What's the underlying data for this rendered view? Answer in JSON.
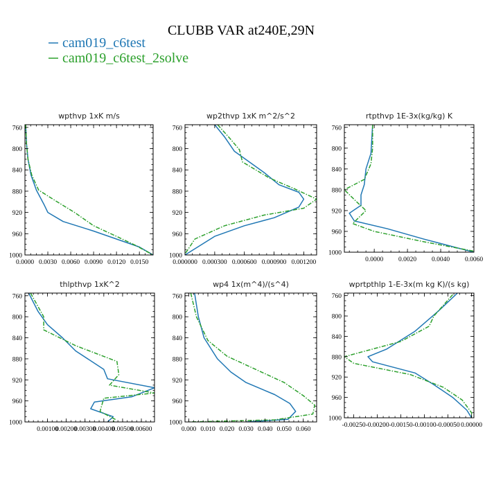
{
  "title": "CLUBB VAR at240E,29N",
  "legend": [
    {
      "label": "cam019_c6test",
      "color": "#1f77b4",
      "dash": "solid"
    },
    {
      "label": "cam019_c6test_2solve",
      "color": "#2ca02c",
      "dash": "dashdot"
    }
  ],
  "chart_data": [
    {
      "type": "line",
      "title": "wpthvp  1xK m/s",
      "xlim": [
        0,
        0.0168
      ],
      "ylim": [
        1000,
        755
      ],
      "xticks": [
        0.0,
        0.003,
        0.006,
        0.009,
        0.012,
        0.015
      ],
      "xtick_labels": [
        "0.0000",
        "0.0030",
        "0.0060",
        "0.0090",
        "0.0120",
        "0.0150"
      ],
      "yticks": [
        760,
        800,
        840,
        880,
        920,
        960,
        1000
      ],
      "ytick_labels": [
        "760",
        "800",
        "840",
        "880",
        "920",
        "960",
        "1000"
      ],
      "series": [
        {
          "name": "cam019_c6test",
          "points": [
            [
              0.0001,
              755
            ],
            [
              0.0002,
              790
            ],
            [
              0.0004,
              820
            ],
            [
              0.0008,
              850
            ],
            [
              0.0015,
              878
            ],
            [
              0.0025,
              905
            ],
            [
              0.003,
              920
            ],
            [
              0.005,
              937
            ],
            [
              0.009,
              955
            ],
            [
              0.012,
              970
            ],
            [
              0.015,
              985
            ],
            [
              0.0168,
              1000
            ]
          ]
        },
        {
          "name": "cam019_c6test_2solve",
          "points": [
            [
              0.0001,
              755
            ],
            [
              0.0002,
              790
            ],
            [
              0.0004,
              820
            ],
            [
              0.0009,
              850
            ],
            [
              0.0018,
              878
            ],
            [
              0.004,
              898
            ],
            [
              0.0065,
              920
            ],
            [
              0.009,
              945
            ],
            [
              0.012,
              965
            ],
            [
              0.0145,
              982
            ],
            [
              0.0168,
              1000
            ]
          ]
        }
      ]
    },
    {
      "type": "line",
      "title": "wp2thvp  1xK m^2/s^2",
      "xlim": [
        0,
        0.00133
      ],
      "ylim": [
        1000,
        755
      ],
      "xticks": [
        0.0,
        0.0003,
        0.0006,
        0.0009,
        0.0012
      ],
      "xtick_labels": [
        "0.000000",
        "0.000300",
        "0.000600",
        "0.000900",
        "0.001200"
      ],
      "yticks": [
        760,
        800,
        840,
        880,
        920,
        960,
        1000
      ],
      "ytick_labels": [
        "760",
        "800",
        "840",
        "880",
        "920",
        "960",
        "1000"
      ],
      "series": [
        {
          "name": "cam019_c6test",
          "points": [
            [
              0.0003,
              755
            ],
            [
              0.0004,
              778
            ],
            [
              0.0005,
              805
            ],
            [
              0.0008,
              845
            ],
            [
              0.00095,
              868
            ],
            [
              0.00115,
              882
            ],
            [
              0.0012,
              895
            ],
            [
              0.00115,
              910
            ],
            [
              0.0009,
              930
            ],
            [
              0.0006,
              945
            ],
            [
              0.0003,
              965
            ],
            [
              0.0,
              1000
            ]
          ]
        },
        {
          "name": "cam019_c6test_2solve",
          "points": [
            [
              0.00033,
              755
            ],
            [
              0.00045,
              780
            ],
            [
              0.00055,
              802
            ],
            [
              0.00058,
              825
            ],
            [
              0.00085,
              855
            ],
            [
              0.0011,
              875
            ],
            [
              0.00133,
              895
            ],
            [
              0.0012,
              912
            ],
            [
              0.0008,
              925
            ],
            [
              0.0004,
              945
            ],
            [
              0.0001,
              970
            ],
            [
              0.0,
              998
            ]
          ]
        }
      ]
    },
    {
      "type": "line",
      "title": "rtpthvp  1E-3x(kg/kg) K",
      "xlim": [
        -0.0018,
        0.006
      ],
      "ylim": [
        1000,
        755
      ],
      "xticks": [
        0.0,
        0.002,
        0.004,
        0.006
      ],
      "xtick_labels": [
        "0.0000",
        "0.0020",
        "0.0040",
        "0.0060"
      ],
      "yticks": [
        760,
        800,
        840,
        880,
        920,
        960,
        1000
      ],
      "ytick_labels": [
        "760",
        "800",
        "840",
        "880",
        "920",
        "960",
        "1000"
      ],
      "series": [
        {
          "name": "cam019_c6test",
          "points": [
            [
              -0.0001,
              755
            ],
            [
              -0.0002,
              810
            ],
            [
              -0.0005,
              840
            ],
            [
              -0.0006,
              870
            ],
            [
              -0.0008,
              890
            ],
            [
              -0.0008,
              910
            ],
            [
              -0.0015,
              925
            ],
            [
              -0.0012,
              940
            ],
            [
              0.0008,
              955
            ],
            [
              0.003,
              975
            ],
            [
              0.006,
              1000
            ]
          ]
        },
        {
          "name": "cam019_c6test_2solve",
          "points": [
            [
              -0.0001,
              755
            ],
            [
              -0.0001,
              800
            ],
            [
              -0.0002,
              830
            ],
            [
              -0.0006,
              860
            ],
            [
              -0.0018,
              880
            ],
            [
              -0.001,
              905
            ],
            [
              -0.0005,
              920
            ],
            [
              -0.0013,
              945
            ],
            [
              0.0,
              960
            ],
            [
              0.003,
              980
            ],
            [
              0.006,
              998
            ]
          ]
        }
      ]
    },
    {
      "type": "line",
      "title": "thlpthvp  1xK^2",
      "xlim": [
        -0.0002,
        0.0067
      ],
      "ylim": [
        1000,
        755
      ],
      "xticks": [
        0.001,
        0.002,
        0.003,
        0.004,
        0.005,
        0.006
      ],
      "xtick_labels": [
        "0.00100",
        "0.00200",
        "0.00300",
        "0.00400",
        "0.00500",
        "0.00600"
      ],
      "yticks": [
        760,
        800,
        840,
        880,
        920,
        960,
        1000
      ],
      "ytick_labels": [
        "760",
        "800",
        "840",
        "880",
        "920",
        "960",
        "1000"
      ],
      "series": [
        {
          "name": "cam019_c6test",
          "points": [
            [
              0.0,
              755
            ],
            [
              0.0005,
              790
            ],
            [
              0.001,
              815
            ],
            [
              0.0018,
              840
            ],
            [
              0.0025,
              865
            ],
            [
              0.004,
              900
            ],
            [
              0.0042,
              918
            ],
            [
              0.0067,
              935
            ],
            [
              0.0055,
              952
            ],
            [
              0.0035,
              962
            ],
            [
              0.0033,
              975
            ],
            [
              0.0045,
              990
            ],
            [
              0.0042,
              1000
            ]
          ]
        },
        {
          "name": "cam019_c6test_2solve",
          "points": [
            [
              0.0001,
              755
            ],
            [
              0.0008,
              800
            ],
            [
              0.0008,
              825
            ],
            [
              0.0025,
              855
            ],
            [
              0.0047,
              885
            ],
            [
              0.0048,
              910
            ],
            [
              0.0043,
              930
            ],
            [
              0.0067,
              945
            ],
            [
              0.004,
              955
            ],
            [
              0.0038,
              980
            ],
            [
              0.0046,
              995
            ],
            [
              0.0045,
              1000
            ]
          ]
        }
      ]
    },
    {
      "type": "line",
      "title": "wp4  1x(m^4)/(s^4)",
      "xlim": [
        -0.002,
        0.067
      ],
      "ylim": [
        1000,
        755
      ],
      "xticks": [
        0.0,
        0.01,
        0.02,
        0.03,
        0.04,
        0.05,
        0.06
      ],
      "xtick_labels": [
        "0.000",
        "0.010",
        "0.020",
        "0.030",
        "0.040",
        "0.050",
        "0.060"
      ],
      "yticks": [
        760,
        800,
        840,
        880,
        920,
        960,
        1000
      ],
      "ytick_labels": [
        "760",
        "800",
        "840",
        "880",
        "920",
        "960",
        "1000"
      ],
      "series": [
        {
          "name": "cam019_c6test",
          "points": [
            [
              0.003,
              755
            ],
            [
              0.005,
              800
            ],
            [
              0.008,
              840
            ],
            [
              0.015,
              880
            ],
            [
              0.022,
              905
            ],
            [
              0.03,
              925
            ],
            [
              0.045,
              948
            ],
            [
              0.053,
              965
            ],
            [
              0.056,
              980
            ],
            [
              0.052,
              995
            ],
            [
              0.03,
              1000
            ]
          ]
        },
        {
          "name": "cam019_c6test_2solve",
          "points": [
            [
              0.001,
              755
            ],
            [
              0.004,
              800
            ],
            [
              0.01,
              845
            ],
            [
              0.02,
              875
            ],
            [
              0.035,
              900
            ],
            [
              0.05,
              925
            ],
            [
              0.06,
              950
            ],
            [
              0.066,
              968
            ],
            [
              0.065,
              985
            ],
            [
              0.045,
              996
            ],
            [
              0.0,
              1000
            ]
          ]
        }
      ]
    },
    {
      "type": "line",
      "title": "wprtpthlp  1-E-3x(m kg K)/(s kg)",
      "xlim": [
        -0.0027,
        5e-05
      ],
      "ylim": [
        1000,
        755
      ],
      "xticks": [
        -0.0025,
        -0.002,
        -0.0015,
        -0.001,
        -0.0005,
        0.0
      ],
      "xtick_labels": [
        "-0.00250",
        "-0.00200",
        "-0.00150",
        "-0.00100",
        "-0.00050",
        "0.00000"
      ],
      "yticks": [
        760,
        800,
        840,
        880,
        920,
        960,
        1000
      ],
      "ytick_labels": [
        "760",
        "800",
        "840",
        "880",
        "920",
        "960",
        "1000"
      ],
      "series": [
        {
          "name": "cam019_c6test",
          "points": [
            [
              -0.0003,
              755
            ],
            [
              -0.0007,
              790
            ],
            [
              -0.0012,
              830
            ],
            [
              -0.0018,
              865
            ],
            [
              -0.0022,
              880
            ],
            [
              -0.0021,
              890
            ],
            [
              -0.0012,
              912
            ],
            [
              -0.0008,
              935
            ],
            [
              -0.0004,
              960
            ],
            [
              -0.0001,
              985
            ],
            [
              0.0,
              1000
            ]
          ]
        },
        {
          "name": "cam019_c6test_2solve",
          "points": [
            [
              -0.0004,
              758
            ],
            [
              -0.0008,
              800
            ],
            [
              -0.0009,
              820
            ],
            [
              -0.0015,
              850
            ],
            [
              -0.0027,
              880
            ],
            [
              -0.0025,
              893
            ],
            [
              -0.0013,
              915
            ],
            [
              -0.0006,
              940
            ],
            [
              -0.0002,
              965
            ],
            [
              0.0,
              990
            ],
            [
              0.0,
              1000
            ]
          ]
        }
      ]
    }
  ]
}
